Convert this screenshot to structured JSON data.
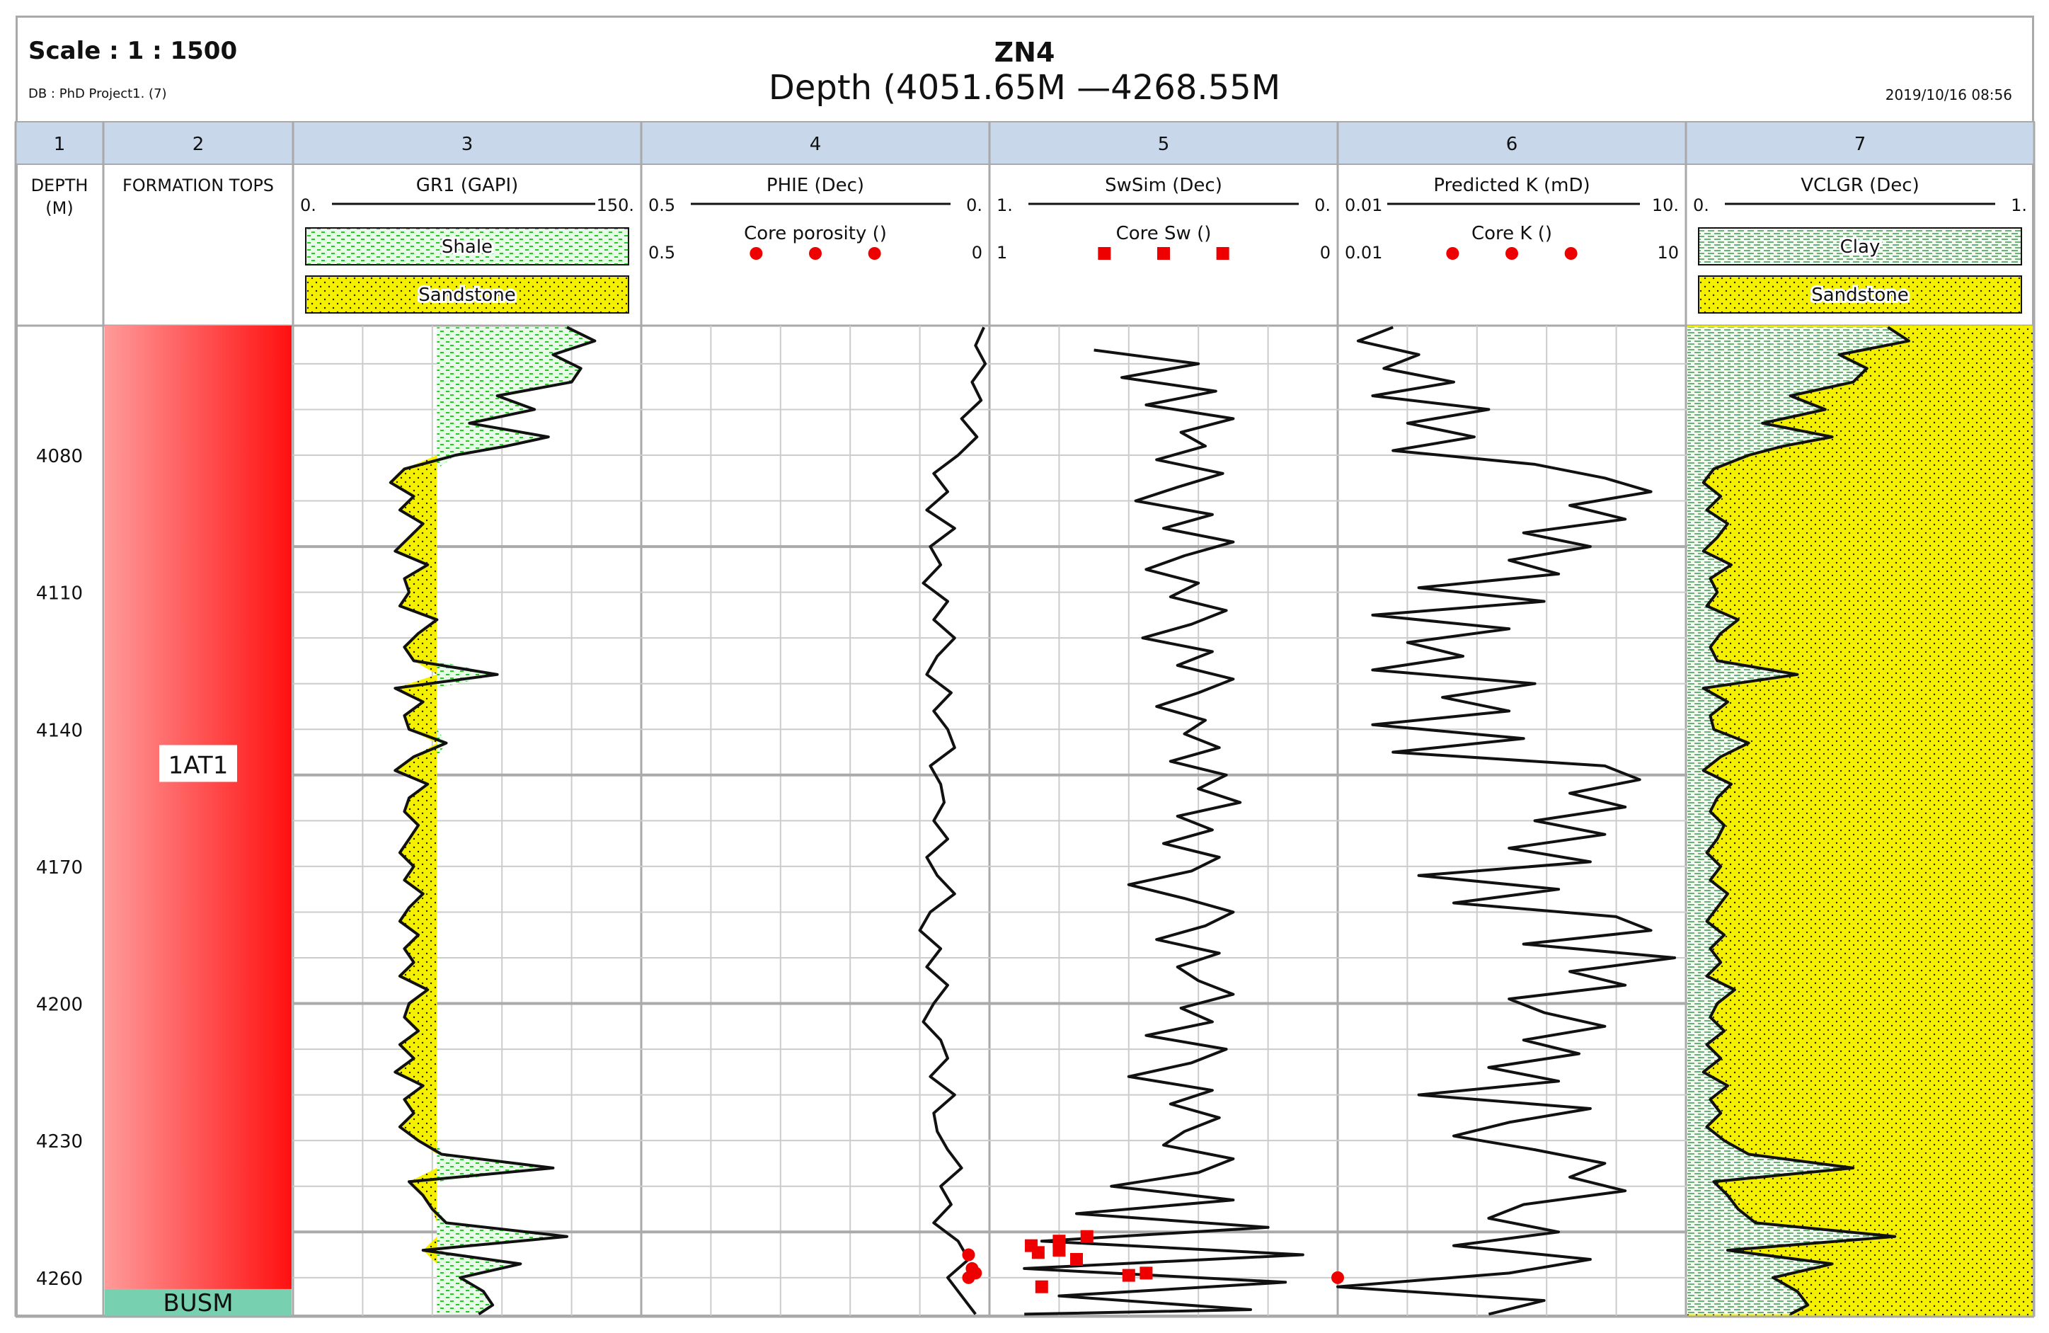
{
  "header": {
    "scale": "Scale : 1 : 1500",
    "db": "DB : PhD Project1. (7)",
    "well": "ZN4",
    "depth_range": "Depth (4051.65M   —4268.55M",
    "timestamp": "2019/10/16 08:56"
  },
  "colors": {
    "sand": "#f5f000",
    "shale": "#28c828",
    "clay": "#3a9a4a",
    "core": "#ee0000",
    "formation_top": "#ff1010",
    "formation_base": "#77d1b1",
    "header_bar": "#c9d7ea",
    "grid": "#cccccc"
  },
  "tracks": [
    {
      "number": "1",
      "title": "DEPTH",
      "subtitle": "(M)"
    },
    {
      "number": "2",
      "title": "FORMATION TOPS"
    },
    {
      "number": "3",
      "curve": "GR1 (GAPI)",
      "left": "0.",
      "right": "150.",
      "fills": [
        "Shale",
        "Sandstone"
      ]
    },
    {
      "number": "4",
      "curve": "PHIE (Dec)",
      "left": "0.5",
      "right": "0.",
      "points": "Core porosity ()",
      "p_left": "0.5",
      "p_right": "0"
    },
    {
      "number": "5",
      "curve": "SwSim (Dec)",
      "left": "1.",
      "right": "0.",
      "points": "Core Sw ()",
      "p_left": "1",
      "p_right": "0"
    },
    {
      "number": "6",
      "curve": "Predicted K (mD)",
      "left": "0.01",
      "right": "10.",
      "points": "Core K ()",
      "p_left": "0.01",
      "p_right": "10"
    },
    {
      "number": "7",
      "curve": "VCLGR (Dec)",
      "left": "0.",
      "right": "1.",
      "fills": [
        "Clay",
        "Sandstone"
      ]
    }
  ],
  "chart_data": {
    "type": "line",
    "depth_range": [
      4051.65,
      4268.55
    ],
    "depth_ticks": [
      4080,
      4110,
      4140,
      4170,
      4200,
      4230,
      4260
    ],
    "formations": [
      {
        "name": "1AT1",
        "top": 4051.65,
        "base": 4262.5
      },
      {
        "name": "BUSM",
        "top": 4262.5,
        "base": 4268.55
      }
    ],
    "series": [
      {
        "name": "GR1 (GAPI)",
        "range": [
          0,
          150
        ],
        "depth": [
          4052,
          4055,
          4058,
          4061,
          4064,
          4067,
          4070,
          4073,
          4076,
          4078,
          4080,
          4083,
          4086,
          4089,
          4092,
          4095,
          4098,
          4101,
          4104,
          4107,
          4110,
          4113,
          4116,
          4119,
          4122,
          4125,
          4128,
          4131,
          4134,
          4137,
          4140,
          4143,
          4146,
          4149,
          4152,
          4155,
          4158,
          4161,
          4164,
          4167,
          4170,
          4173,
          4176,
          4179,
          4182,
          4185,
          4188,
          4191,
          4194,
          4197,
          4200,
          4203,
          4206,
          4209,
          4212,
          4215,
          4218,
          4221,
          4224,
          4227,
          4230,
          4233,
          4236,
          4239,
          4242,
          4245,
          4248,
          4251,
          4254,
          4257,
          4260,
          4263,
          4266,
          4268
        ],
        "value": [
          118,
          130,
          112,
          124,
          120,
          88,
          104,
          76,
          110,
          92,
          70,
          48,
          42,
          52,
          46,
          56,
          50,
          44,
          58,
          48,
          50,
          46,
          62,
          54,
          48,
          52,
          88,
          44,
          56,
          48,
          50,
          66,
          52,
          44,
          58,
          50,
          48,
          54,
          50,
          46,
          52,
          48,
          56,
          50,
          46,
          54,
          48,
          52,
          46,
          58,
          50,
          48,
          54,
          46,
          52,
          44,
          56,
          48,
          52,
          46,
          54,
          64,
          112,
          50,
          56,
          60,
          66,
          118,
          56,
          98,
          72,
          82,
          86,
          80
        ]
      },
      {
        "name": "PHIE (Dec)",
        "range": [
          0.5,
          0
        ],
        "depth": [
          4052,
          4056,
          4060,
          4064,
          4068,
          4072,
          4076,
          4080,
          4084,
          4088,
          4092,
          4096,
          4100,
          4104,
          4108,
          4112,
          4116,
          4120,
          4124,
          4128,
          4132,
          4136,
          4140,
          4144,
          4148,
          4152,
          4156,
          4160,
          4164,
          4168,
          4172,
          4176,
          4180,
          4184,
          4188,
          4192,
          4196,
          4200,
          4204,
          4208,
          4212,
          4216,
          4220,
          4224,
          4228,
          4232,
          4236,
          4240,
          4244,
          4248,
          4252,
          4256,
          4260,
          4264,
          4268
        ],
        "value": [
          0.008,
          0.02,
          0.006,
          0.025,
          0.012,
          0.04,
          0.018,
          0.045,
          0.08,
          0.06,
          0.09,
          0.05,
          0.085,
          0.07,
          0.095,
          0.06,
          0.08,
          0.05,
          0.075,
          0.09,
          0.055,
          0.08,
          0.06,
          0.05,
          0.085,
          0.07,
          0.065,
          0.08,
          0.06,
          0.09,
          0.075,
          0.05,
          0.085,
          0.1,
          0.07,
          0.09,
          0.06,
          0.08,
          0.095,
          0.07,
          0.06,
          0.085,
          0.05,
          0.08,
          0.075,
          0.06,
          0.04,
          0.07,
          0.055,
          0.08,
          0.045,
          0.03,
          0.06,
          0.04,
          0.02
        ]
      },
      {
        "name": "SwSim (Dec)",
        "range": [
          1,
          0
        ],
        "depth": [
          4057,
          4060,
          4063,
          4066,
          4069,
          4072,
          4075,
          4078,
          4081,
          4084,
          4087,
          4090,
          4093,
          4096,
          4099,
          4102,
          4105,
          4108,
          4111,
          4114,
          4117,
          4120,
          4123,
          4126,
          4129,
          4132,
          4135,
          4138,
          4141,
          4144,
          4147,
          4150,
          4153,
          4156,
          4159,
          4162,
          4165,
          4168,
          4171,
          4174,
          4177,
          4180,
          4183,
          4186,
          4189,
          4192,
          4195,
          4198,
          4201,
          4204,
          4207,
          4210,
          4213,
          4216,
          4219,
          4222,
          4225,
          4228,
          4231,
          4234,
          4237,
          4240,
          4243,
          4246,
          4249,
          4252,
          4255,
          4258,
          4261,
          4264,
          4267,
          4268
        ],
        "value": [
          0.7,
          0.4,
          0.62,
          0.35,
          0.55,
          0.3,
          0.45,
          0.38,
          0.52,
          0.33,
          0.46,
          0.58,
          0.36,
          0.5,
          0.3,
          0.44,
          0.55,
          0.4,
          0.48,
          0.32,
          0.42,
          0.56,
          0.36,
          0.46,
          0.3,
          0.4,
          0.52,
          0.38,
          0.44,
          0.34,
          0.48,
          0.32,
          0.4,
          0.28,
          0.46,
          0.36,
          0.5,
          0.34,
          0.42,
          0.6,
          0.44,
          0.3,
          0.38,
          0.52,
          0.34,
          0.46,
          0.4,
          0.3,
          0.45,
          0.36,
          0.55,
          0.32,
          0.42,
          0.6,
          0.36,
          0.48,
          0.34,
          0.44,
          0.5,
          0.3,
          0.4,
          0.65,
          0.3,
          0.75,
          0.2,
          0.85,
          0.1,
          0.9,
          0.15,
          0.8,
          0.25,
          0.9
        ]
      },
      {
        "name": "Predicted K (mD)",
        "range": [
          0.01,
          10
        ],
        "scale": "log",
        "depth": [
          4052,
          4055,
          4058,
          4061,
          4064,
          4067,
          4070,
          4073,
          4076,
          4079,
          4082,
          4085,
          4088,
          4091,
          4094,
          4097,
          4100,
          4103,
          4106,
          4109,
          4112,
          4115,
          4118,
          4121,
          4124,
          4127,
          4130,
          4133,
          4136,
          4139,
          4142,
          4145,
          4148,
          4151,
          4154,
          4157,
          4160,
          4163,
          4166,
          4169,
          4172,
          4175,
          4178,
          4181,
          4184,
          4187,
          4190,
          4193,
          4196,
          4199,
          4202,
          4205,
          4208,
          4211,
          4214,
          4217,
          4220,
          4223,
          4226,
          4229,
          4232,
          4235,
          4238,
          4241,
          4244,
          4247,
          4250,
          4253,
          4256,
          4259,
          4262,
          4265,
          4268
        ],
        "value": [
          0.03,
          0.015,
          0.05,
          0.025,
          0.1,
          0.02,
          0.2,
          0.04,
          0.15,
          0.03,
          0.5,
          2.0,
          5.0,
          1.0,
          3.0,
          0.4,
          1.5,
          0.3,
          0.8,
          0.05,
          0.6,
          0.02,
          0.3,
          0.04,
          0.12,
          0.02,
          0.5,
          0.08,
          0.3,
          0.02,
          0.4,
          0.03,
          2.0,
          4.0,
          1.0,
          3.0,
          0.5,
          2.0,
          0.3,
          1.5,
          0.05,
          0.8,
          0.1,
          2.5,
          5.0,
          0.4,
          8.0,
          1.0,
          3.0,
          0.3,
          0.6,
          2.0,
          0.4,
          1.2,
          0.2,
          0.8,
          0.05,
          1.5,
          0.3,
          0.1,
          0.5,
          2.0,
          1.0,
          3.0,
          0.4,
          0.2,
          0.8,
          0.1,
          1.5,
          0.3,
          0.01,
          0.6,
          0.2
        ]
      },
      {
        "name": "VCLGR (Dec)",
        "range": [
          0,
          1
        ],
        "depth": [
          4052,
          4055,
          4058,
          4061,
          4064,
          4067,
          4070,
          4073,
          4076,
          4078,
          4080,
          4083,
          4086,
          4089,
          4092,
          4095,
          4098,
          4101,
          4104,
          4107,
          4110,
          4113,
          4116,
          4119,
          4122,
          4125,
          4128,
          4131,
          4134,
          4137,
          4140,
          4143,
          4146,
          4149,
          4152,
          4155,
          4158,
          4161,
          4164,
          4167,
          4170,
          4173,
          4176,
          4179,
          4182,
          4185,
          4188,
          4191,
          4194,
          4197,
          4200,
          4203,
          4206,
          4209,
          4212,
          4215,
          4218,
          4221,
          4224,
          4227,
          4230,
          4233,
          4236,
          4239,
          4242,
          4245,
          4248,
          4251,
          4254,
          4257,
          4260,
          4263,
          4266,
          4268
        ],
        "value": [
          0.58,
          0.64,
          0.44,
          0.52,
          0.48,
          0.3,
          0.4,
          0.22,
          0.42,
          0.28,
          0.18,
          0.08,
          0.05,
          0.1,
          0.06,
          0.12,
          0.09,
          0.05,
          0.13,
          0.07,
          0.09,
          0.06,
          0.15,
          0.1,
          0.07,
          0.09,
          0.32,
          0.05,
          0.12,
          0.07,
          0.08,
          0.18,
          0.1,
          0.05,
          0.13,
          0.09,
          0.07,
          0.11,
          0.09,
          0.06,
          0.1,
          0.07,
          0.12,
          0.09,
          0.06,
          0.11,
          0.07,
          0.1,
          0.06,
          0.14,
          0.09,
          0.07,
          0.11,
          0.06,
          0.1,
          0.05,
          0.12,
          0.07,
          0.1,
          0.06,
          0.11,
          0.18,
          0.48,
          0.08,
          0.12,
          0.15,
          0.2,
          0.6,
          0.12,
          0.42,
          0.25,
          0.32,
          0.35,
          0.3
        ]
      }
    ],
    "core_points": [
      {
        "name": "Core porosity ()",
        "shape": "circle",
        "range": [
          0.5,
          0
        ],
        "points": [
          [
            4255,
            0.03
          ],
          [
            4258,
            0.025
          ],
          [
            4259,
            0.02
          ],
          [
            4260,
            0.03
          ]
        ]
      },
      {
        "name": "Core Sw ()",
        "shape": "square",
        "range": [
          1,
          0
        ],
        "points": [
          [
            4251,
            0.72
          ],
          [
            4252,
            0.8
          ],
          [
            4253,
            0.88
          ],
          [
            4254,
            0.8
          ],
          [
            4254.5,
            0.86
          ],
          [
            4256,
            0.75
          ],
          [
            4259,
            0.55
          ],
          [
            4259.5,
            0.6
          ],
          [
            4262,
            0.85
          ]
        ]
      },
      {
        "name": "Core K ()",
        "shape": "circle",
        "range": [
          0.01,
          10
        ],
        "scale": "log",
        "points": [
          [
            4260,
            0.01
          ]
        ]
      }
    ]
  }
}
